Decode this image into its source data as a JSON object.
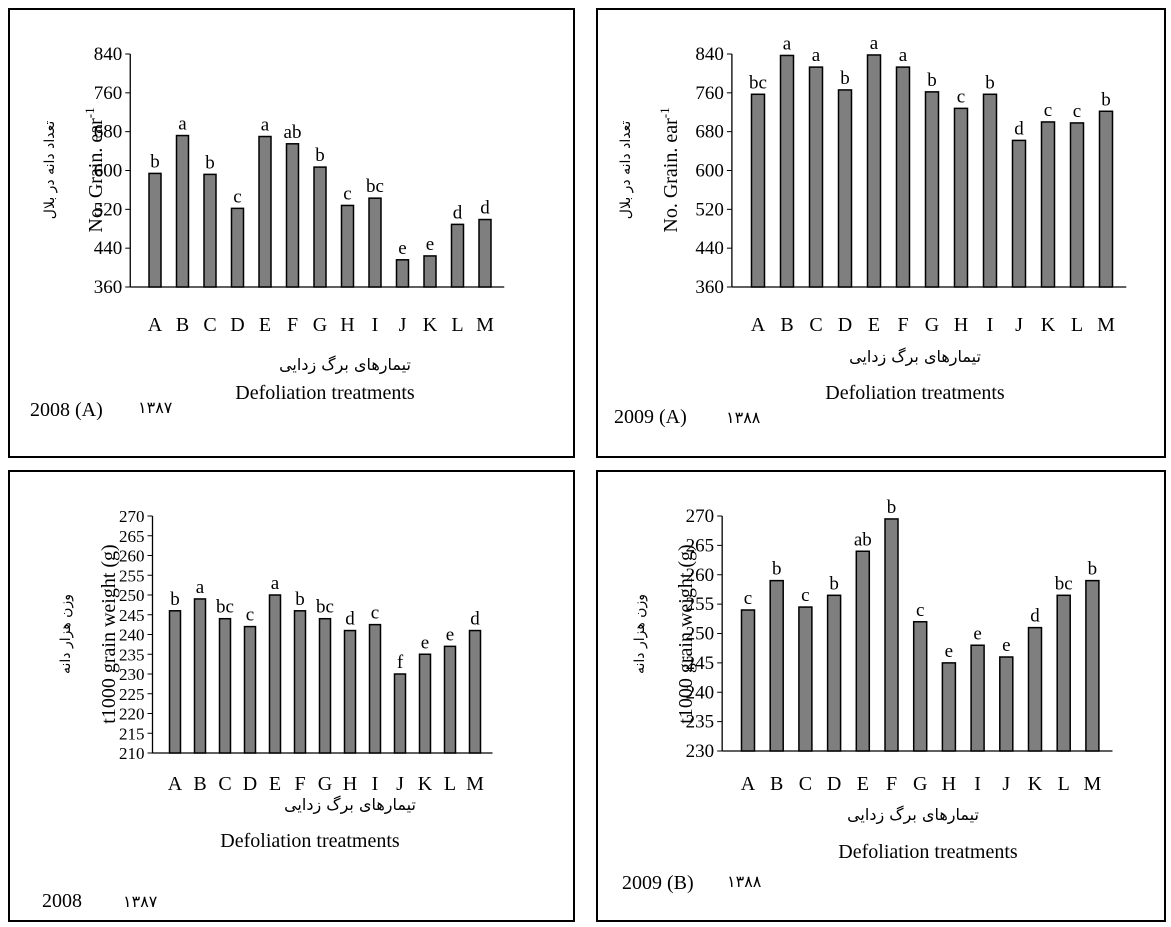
{
  "chart_data": [
    {
      "type": "bar",
      "year_label": "2008 (A)",
      "year_fa": "۱۳۸۷",
      "ylabel_en": "No. Grain. ear",
      "ylabel_sup": "-1",
      "ylabel_fa": "تعداد دانه در بلال",
      "xlabel_fa": "تیمارهای برگ زدایی",
      "xlabel_en": "Defoliation treatments",
      "categories": [
        "A",
        "B",
        "C",
        "D",
        "E",
        "F",
        "G",
        "H",
        "I",
        "J",
        "K",
        "L",
        "M"
      ],
      "values": [
        594,
        672,
        592,
        522,
        670,
        655,
        607,
        528,
        543,
        416,
        424,
        489,
        499
      ],
      "letters": [
        "b",
        "a",
        "b",
        "c",
        "a",
        "ab",
        "b",
        "c",
        "bc",
        "e",
        "e",
        "d",
        "d"
      ],
      "ylim": [
        360,
        840
      ],
      "yticks": [
        "360",
        "440",
        "520",
        "600",
        "680",
        "760",
        "840"
      ],
      "bar_color": "#7f7f7f"
    },
    {
      "type": "bar",
      "year_label": "2009 (A)",
      "year_fa": "۱۳۸۸",
      "ylabel_en": "No. Grain. ear",
      "ylabel_sup": "-1",
      "ylabel_fa": "تعداد دانه در بلال",
      "xlabel_fa": "تیمارهای برگ زدایی",
      "xlabel_en": "Defoliation treatments",
      "categories": [
        "A",
        "B",
        "C",
        "D",
        "E",
        "F",
        "G",
        "H",
        "I",
        "J",
        "K",
        "L",
        "M"
      ],
      "values": [
        757,
        837,
        813,
        766,
        838,
        813,
        762,
        728,
        757,
        662,
        700,
        698,
        722
      ],
      "letters": [
        "bc",
        "a",
        "a",
        "b",
        "a",
        "a",
        "b",
        "c",
        "b",
        "d",
        "c",
        "c",
        "b"
      ],
      "ylim": [
        360,
        840
      ],
      "yticks": [
        "360",
        "440",
        "520",
        "600",
        "680",
        "760",
        "840"
      ],
      "bar_color": "#7f7f7f"
    },
    {
      "type": "bar",
      "year_label": "2008",
      "year_fa": "۱۳۸۷",
      "ylabel_en": "t1000 grain weight (g)",
      "ylabel_sup": "",
      "ylabel_fa": "وزن هزار دانه",
      "xlabel_fa": "تیمارهای برگ زدایی",
      "xlabel_en": "Defoliation treatments",
      "categories": [
        "A",
        "B",
        "C",
        "D",
        "E",
        "F",
        "G",
        "H",
        "I",
        "J",
        "K",
        "L",
        "M"
      ],
      "values": [
        246,
        249,
        244,
        242,
        250,
        246,
        244,
        241,
        242.5,
        230,
        235,
        237,
        241
      ],
      "letters": [
        "b",
        "a",
        "bc",
        "c",
        "a",
        "b",
        "bc",
        "d",
        "c",
        "f",
        "e",
        "e",
        "d"
      ],
      "ylim": [
        210,
        270
      ],
      "yticks": [
        "210",
        "215",
        "220",
        "225",
        "230",
        "235",
        "240",
        "245",
        "250",
        "255",
        "260",
        "265",
        "270"
      ],
      "bar_color": "#7f7f7f"
    },
    {
      "type": "bar",
      "year_label": "2009 (B)",
      "year_fa": "۱۳۸۸",
      "ylabel_en": "t1000 grain weight (g)",
      "ylabel_sup": "",
      "ylabel_fa": "وزن هزار دانه",
      "xlabel_fa": "تیمارهای برگ زدایی",
      "xlabel_en": "Defoliation treatments",
      "categories": [
        "A",
        "B",
        "C",
        "D",
        "E",
        "F",
        "G",
        "H",
        "I",
        "J",
        "K",
        "L",
        "M"
      ],
      "values": [
        254,
        259,
        254.5,
        256.5,
        264,
        269.5,
        252,
        245,
        248,
        246,
        251,
        256.5,
        259
      ],
      "letters": [
        "c",
        "b",
        "c",
        "b",
        "ab",
        "b",
        "c",
        "e",
        "e",
        "e",
        "d",
        "bc",
        "b"
      ],
      "ylim": [
        230,
        270
      ],
      "yticks": [
        "230",
        "235",
        "240",
        "245",
        "250",
        "255",
        "260",
        "265",
        "270"
      ],
      "bar_color": "#7f7f7f"
    }
  ]
}
